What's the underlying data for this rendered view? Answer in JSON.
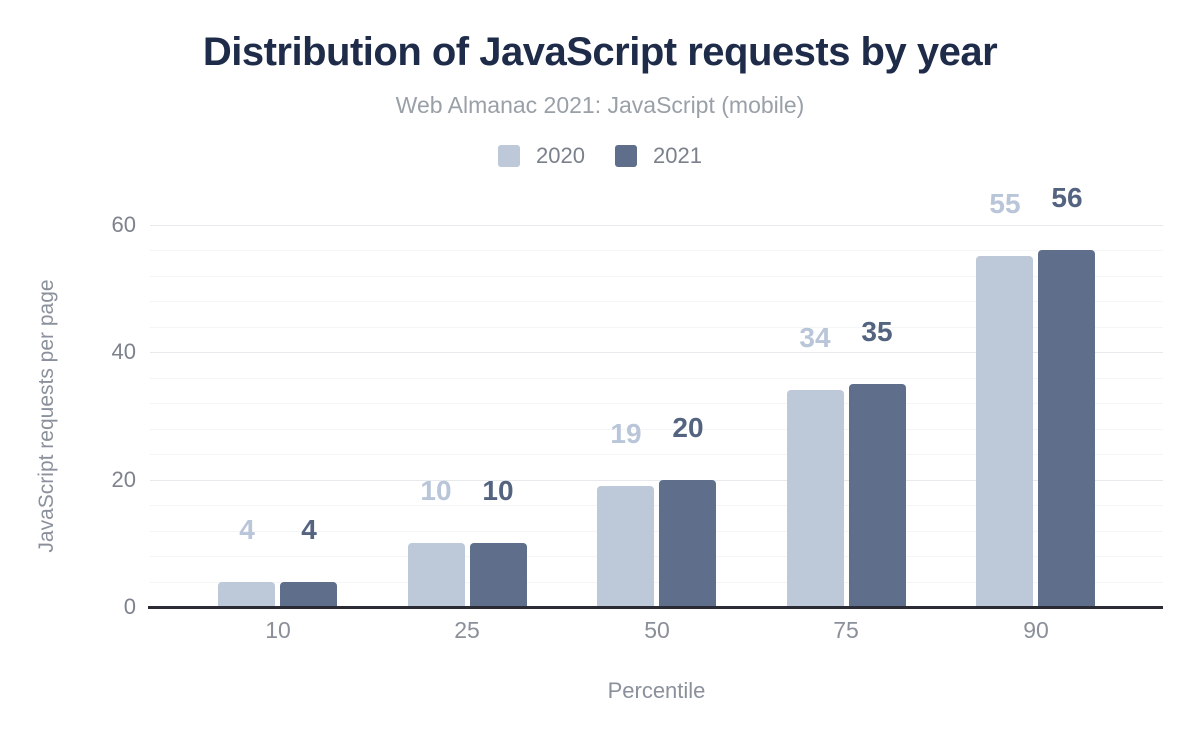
{
  "header": {
    "title": "Distribution of JavaScript requests by year",
    "subtitle": "Web Almanac 2021: JavaScript (mobile)"
  },
  "chart_data": {
    "type": "bar",
    "title": "Distribution of JavaScript requests by year",
    "subtitle": "Web Almanac 2021: JavaScript (mobile)",
    "categories": [
      "10",
      "25",
      "50",
      "75",
      "90"
    ],
    "series": [
      {
        "name": "2020",
        "color": "#bdc8d8",
        "label_color": "#b9c5d8",
        "values": [
          4,
          10,
          19,
          34,
          55
        ]
      },
      {
        "name": "2021",
        "color": "#5f6e8b",
        "label_color": "#54637f",
        "values": [
          4,
          10,
          20,
          35,
          56
        ]
      }
    ],
    "xlabel": "Percentile",
    "ylabel": "JavaScript requests per page",
    "ylim": [
      0,
      60
    ],
    "yticks": [
      0,
      20,
      40,
      60
    ],
    "minor_grid_step": 4,
    "major_grid_step": 20,
    "grid": "on",
    "legend_position": "top-center",
    "data_labels": "above-bars"
  },
  "colors": {
    "title": "#1e2b49",
    "subtitle": "#9aa0a8",
    "axis_line": "#2b2b35",
    "tick_label": "#7d828d",
    "major_grid": "#e7e9ec",
    "minor_grid": "#f4f5f7",
    "background": "#ffffff"
  }
}
